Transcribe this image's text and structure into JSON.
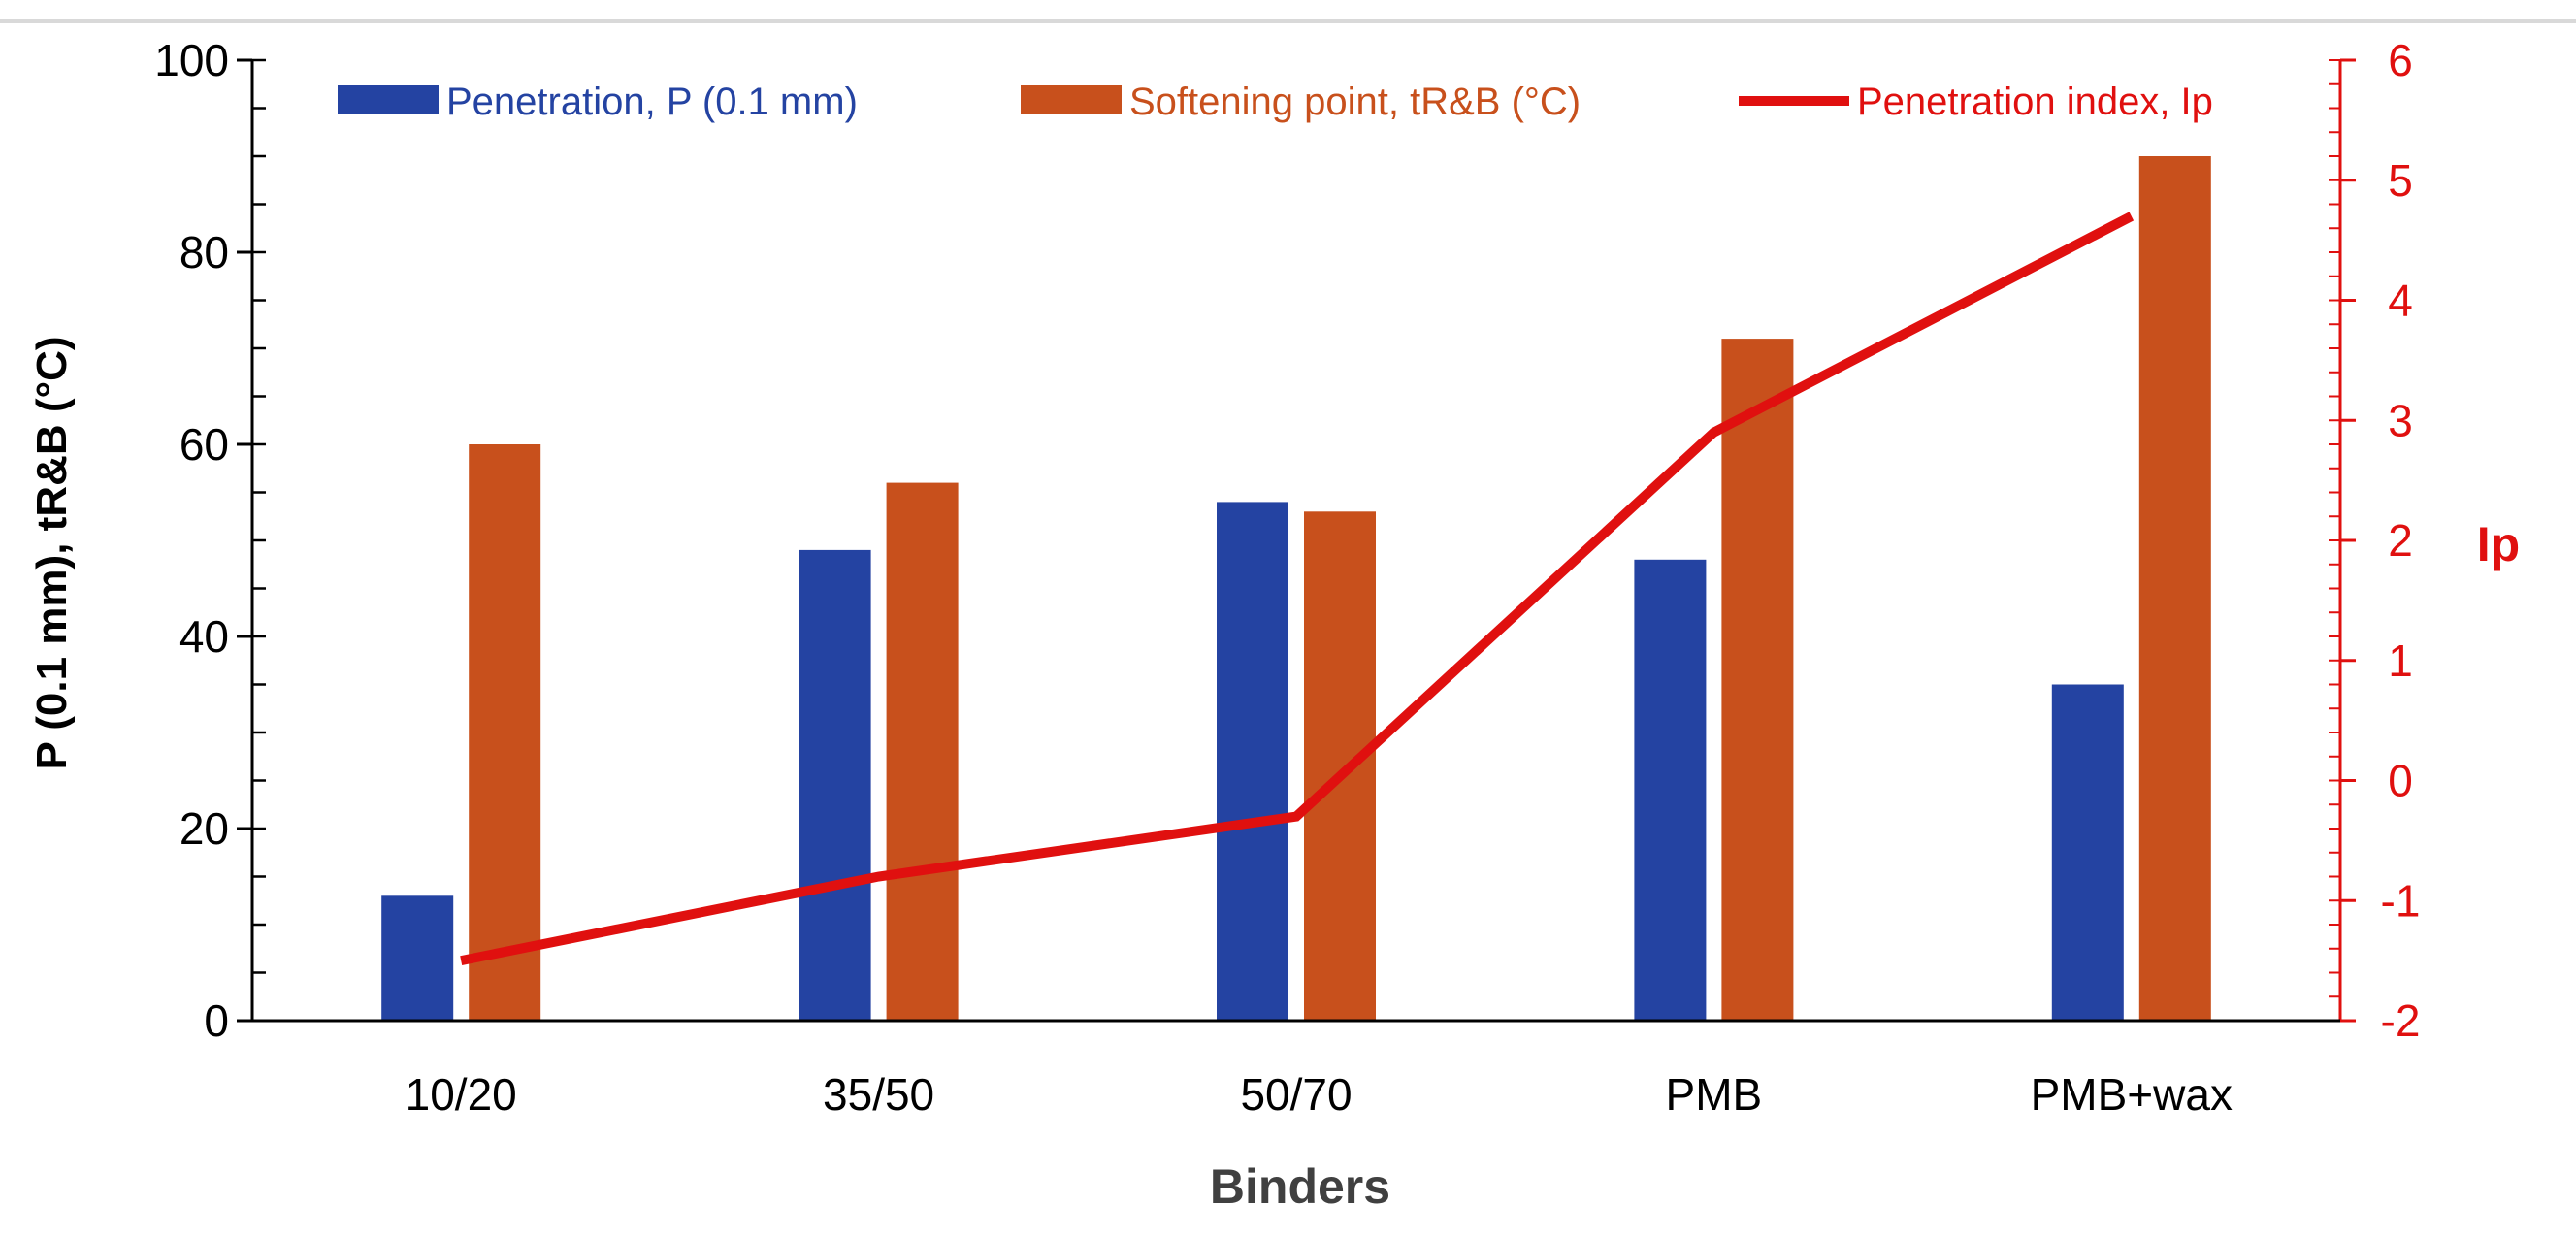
{
  "chart_data": {
    "type": "bar",
    "categories": [
      "10/20",
      "35/50",
      "50/70",
      "PMB",
      "PMB+wax"
    ],
    "series": [
      {
        "name": "Penetration, P (0.1 mm)",
        "kind": "bar",
        "axis": "left",
        "color": "#2443a2",
        "values": [
          13,
          49,
          54,
          48,
          35
        ]
      },
      {
        "name": "Softening point, tR&B (°C)",
        "kind": "bar",
        "axis": "left",
        "color": "#c8501c",
        "values": [
          60,
          56,
          53,
          71,
          90
        ]
      },
      {
        "name": "Penetration index, Ip",
        "kind": "line",
        "axis": "right",
        "color": "#e0100f",
        "values": [
          -1.5,
          -0.8,
          -0.3,
          2.9,
          4.7
        ]
      }
    ],
    "xlabel": "Binders",
    "ylabel": "P (0.1 mm), tR&B (°C)",
    "y2label": "Ip",
    "ylim": [
      0,
      100
    ],
    "y2lim": [
      -2,
      6
    ],
    "yticks": [
      0,
      20,
      40,
      60,
      80,
      100
    ],
    "y2ticks": [
      -2,
      -1,
      0,
      1,
      2,
      3,
      4,
      5,
      6
    ],
    "legend_position": "top",
    "grid": false,
    "colors": {
      "left_axis": "#000000",
      "right_axis": "#e0100f",
      "frame": "#d9d9d9"
    }
  }
}
